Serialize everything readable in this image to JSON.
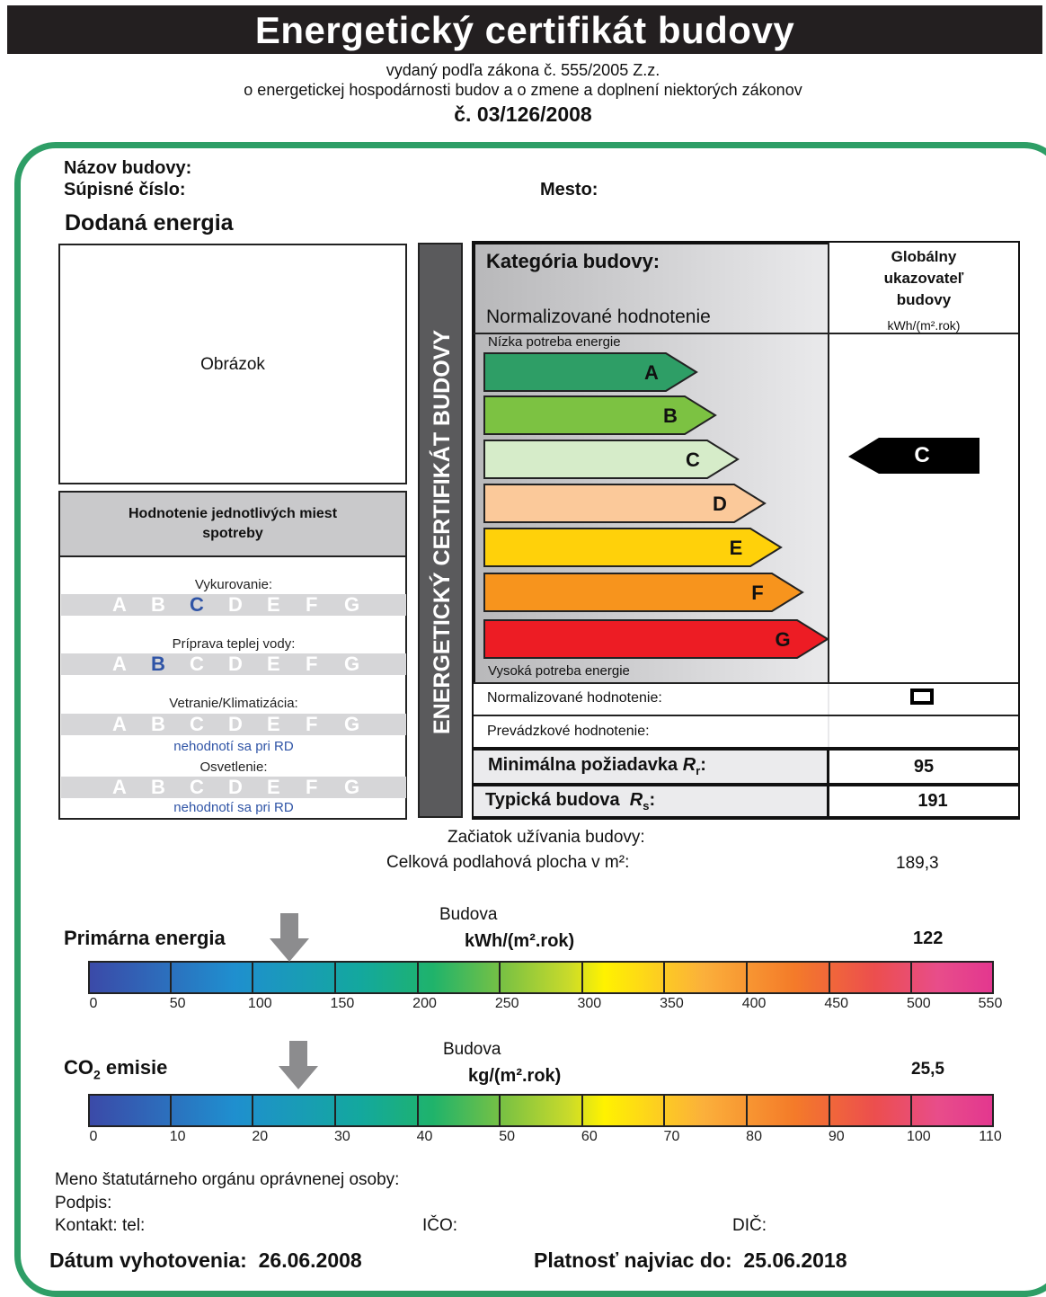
{
  "header": {
    "title": "Energetický certifikát budovy",
    "subtitle1": "vydaný podľa zákona č. 555/2005 Z.z.",
    "subtitle2": "o energetickej hospodárnosti budov a o zmene a doplnení niektorých zákonov",
    "number": "č. 03/126/2008"
  },
  "building": {
    "name_label": "Názov budovy:",
    "supisne_label": "Súpisné číslo:",
    "mesto_label": "Mesto:",
    "delivered_energy": "Dodaná energia",
    "image_placeholder": "Obrázok"
  },
  "places": {
    "title": "Hodnotenie jednotlivých miest spotreby",
    "letters": [
      "A",
      "B",
      "C",
      "D",
      "E",
      "F",
      "G"
    ],
    "items": [
      {
        "label": "Vykurovanie:",
        "selected": "C",
        "note": ""
      },
      {
        "label": "Príprava teplej vody:",
        "selected": "B",
        "note": ""
      },
      {
        "label": "Vetranie/Klimatizácia:",
        "selected": "",
        "note": "nehodnotí sa pri RD"
      },
      {
        "label": "Osvetlenie:",
        "selected": "",
        "note": "nehodnotí sa pri RD"
      }
    ]
  },
  "vertical_label": "ENERGETICKÝ CERTIFIKÁT BUDOVY",
  "category": {
    "title": "Kategória budovy:",
    "normalized": "Normalizované hodnotenie",
    "global_l1": "Globálny",
    "global_l2": "ukazovateľ",
    "global_l3": "budovy",
    "unit": "kWh/(m².rok)",
    "low": "Nízka potreba energie",
    "high": "Vysoká potreba energie",
    "classes": [
      {
        "letter": "A",
        "color": "#2e9e66"
      },
      {
        "letter": "B",
        "color": "#7cc242"
      },
      {
        "letter": "C",
        "color": "#d6ecc9"
      },
      {
        "letter": "D",
        "color": "#fbc99a"
      },
      {
        "letter": "E",
        "color": "#ffd10a"
      },
      {
        "letter": "F",
        "color": "#f7941d"
      },
      {
        "letter": "G",
        "color": "#ed1c24"
      }
    ],
    "indicator": "C",
    "norm_label": "Normalizované hodnotenie:",
    "prev_label": "Prevádzkové hodnotenie:",
    "min_label": "Minimálna požiadavka",
    "min_sym": "R",
    "min_sub": "r",
    "min_value": "95",
    "typ_label": "Typická budova",
    "typ_sym": "R",
    "typ_sub": "s",
    "typ_value": "191"
  },
  "usage": {
    "start_label": "Začiatok užívania budovy:",
    "area_label": "Celková podlahová plocha v m²:",
    "area_value": "189,3"
  },
  "primary": {
    "title": "Primárna energia",
    "budova": "Budova",
    "unit": "kWh/(m².rok)",
    "value": 122,
    "value_text": "122",
    "scale": [
      0,
      50,
      100,
      150,
      200,
      250,
      300,
      350,
      400,
      450,
      500,
      550
    ]
  },
  "co2": {
    "title_pre": "CO",
    "title_sub": "2",
    "title_post": " emisie",
    "budova": "Budova",
    "unit": "kg/(m².rok)",
    "value": 25.5,
    "value_text": "25,5",
    "scale": [
      0,
      10,
      20,
      30,
      40,
      50,
      60,
      70,
      80,
      90,
      100,
      110
    ]
  },
  "footer": {
    "meno": "Meno štatutárneho orgánu oprávnenej osoby:",
    "podpis": "Podpis:",
    "kontakt": "Kontakt: tel:",
    "ico": "IČO:",
    "dic": "DIČ:",
    "datum_label": "Dátum vyhotovenia:",
    "datum_value": "26.06.2008",
    "platnost_label": "Platnosť najviac do:",
    "platnost_value": "25.06.2018"
  }
}
